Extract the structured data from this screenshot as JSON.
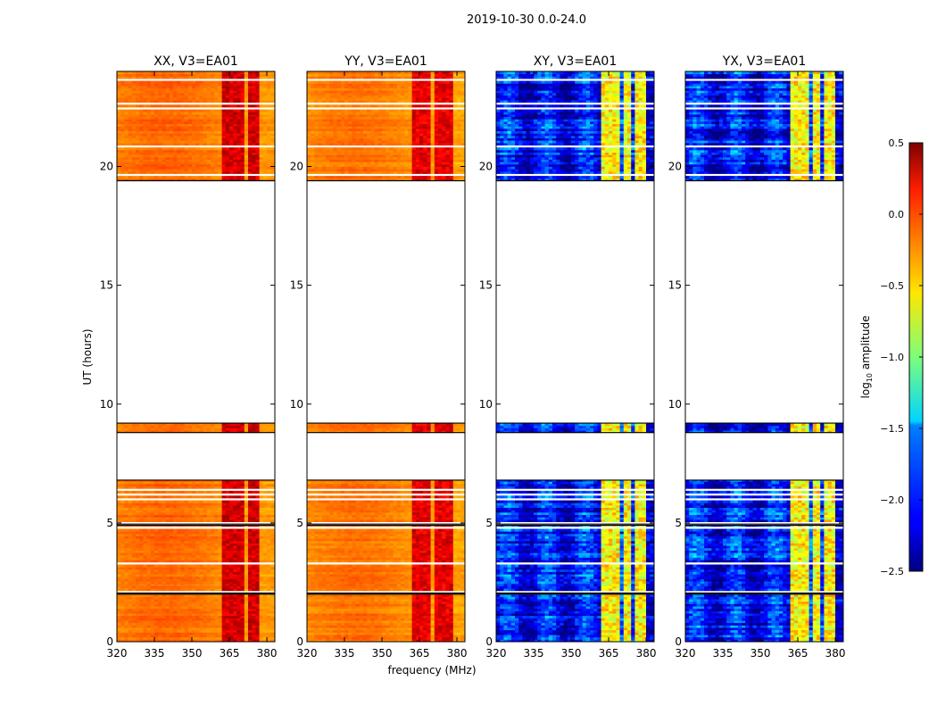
{
  "chart_data": {
    "type": "heatmap",
    "suptitle": "2019-10-30 0.0-24.0",
    "xlabel": "frequency (MHz)",
    "ylabel": "UT (hours)",
    "xlim": [
      320,
      383.2
    ],
    "ylim": [
      0,
      24
    ],
    "xticks": [
      "320",
      "335",
      "350",
      "365",
      "380"
    ],
    "xtick_values": [
      320,
      335,
      350,
      365,
      380
    ],
    "yticks": [
      "0",
      "5",
      "10",
      "15",
      "20"
    ],
    "ytick_values": [
      0,
      5,
      10,
      15,
      20
    ],
    "time_segments_hours": [
      [
        0.0,
        2.0
      ],
      [
        2.05,
        4.9
      ],
      [
        4.95,
        6.8
      ],
      [
        8.8,
        9.2
      ],
      [
        19.4,
        24.0
      ]
    ],
    "panels": [
      {
        "title": "XX, V3=EA01",
        "base_value": -0.25,
        "rfi_bands_mhz": [
          [
            362,
            365
          ],
          [
            365.5,
            367
          ],
          [
            367.5,
            370
          ],
          [
            373,
            376
          ]
        ],
        "rfi_value": 0.25
      },
      {
        "title": "YY, V3=EA01",
        "base_value": -0.28,
        "rfi_bands_mhz": [
          [
            363,
            366
          ],
          [
            366.5,
            369
          ],
          [
            372,
            378
          ]
        ],
        "rfi_value": 0.2
      },
      {
        "title": "XY, V3=EA01",
        "base_value": -2.1,
        "rfi_bands_mhz": [
          [
            362,
            365
          ],
          [
            366,
            369
          ],
          [
            371,
            373.5
          ],
          [
            376,
            379
          ]
        ],
        "rfi_value": -0.6
      },
      {
        "title": "YX, V3=EA01",
        "base_value": -2.1,
        "rfi_bands_mhz": [
          [
            362,
            365
          ],
          [
            366,
            369
          ],
          [
            371,
            373.5
          ],
          [
            376,
            379
          ]
        ],
        "rfi_value": -0.6
      }
    ],
    "colorbar": {
      "label": "log10 amplitude",
      "label_main": "log",
      "label_sub": "10",
      "label_rest": " amplitude",
      "range": [
        -2.5,
        0.5
      ],
      "ticks": [
        "0.5",
        "0.0",
        "−0.5",
        "−1.0",
        "−1.5",
        "−2.0",
        "−2.5"
      ],
      "tick_values": [
        0.5,
        0.0,
        -0.5,
        -1.0,
        -1.5,
        -2.0,
        -2.5
      ],
      "colormap": "jet"
    }
  }
}
